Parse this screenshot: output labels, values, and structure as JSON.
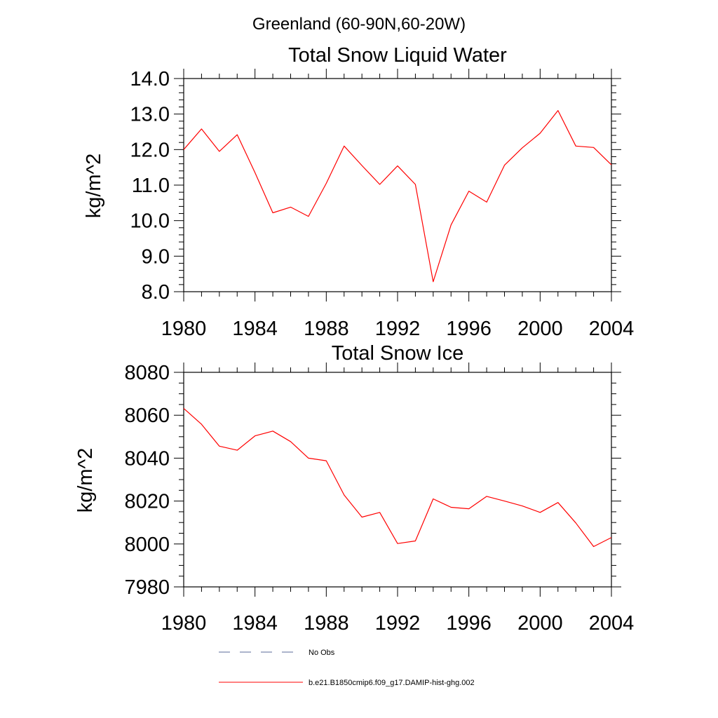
{
  "figure": {
    "suptitle": "Greenland (60-90N,60-20W)"
  },
  "chart_data": [
    {
      "type": "line",
      "title": "Total Snow Liquid Water",
      "xlabel": "",
      "ylabel": "kg/m^2",
      "xlim": [
        1980,
        2004
      ],
      "ylim": [
        8.0,
        14.0
      ],
      "x_ticks": [
        "1980",
        "1984",
        "1988",
        "1992",
        "1996",
        "2000",
        "2004"
      ],
      "y_ticks": [
        "8.0",
        "9.0",
        "10.0",
        "11.0",
        "12.0",
        "13.0",
        "14.0"
      ],
      "grid": false,
      "series": [
        {
          "name": "b.e21.B1850cmip6.f09_g17.DAMIP-hist-ghg.002",
          "color": "#ff0000",
          "x": [
            1980,
            1981,
            1982,
            1983,
            1984,
            1985,
            1986,
            1987,
            1988,
            1989,
            1990,
            1991,
            1992,
            1993,
            1994,
            1995,
            1996,
            1997,
            1998,
            1999,
            2000,
            2001,
            2002,
            2003,
            2004
          ],
          "y": [
            12.0,
            12.58,
            11.95,
            12.42,
            11.35,
            10.22,
            10.38,
            10.12,
            11.05,
            12.1,
            11.55,
            11.02,
            11.54,
            11.02,
            8.28,
            9.88,
            10.83,
            10.52,
            11.56,
            12.05,
            12.46,
            13.1,
            12.1,
            12.06,
            11.57
          ]
        }
      ]
    },
    {
      "type": "line",
      "title": "Total Snow Ice",
      "xlabel": "",
      "ylabel": "kg/m^2",
      "xlim": [
        1980,
        2004
      ],
      "ylim": [
        7980,
        8080
      ],
      "x_ticks": [
        "1980",
        "1984",
        "1988",
        "1992",
        "1996",
        "2000",
        "2004"
      ],
      "y_ticks": [
        "7980",
        "8000",
        "8020",
        "8040",
        "8060",
        "8080"
      ],
      "grid": false,
      "series": [
        {
          "name": "b.e21.B1850cmip6.f09_g17.DAMIP-hist-ghg.002",
          "color": "#ff0000",
          "x": [
            1980,
            1981,
            1982,
            1983,
            1984,
            1985,
            1986,
            1987,
            1988,
            1989,
            1990,
            1991,
            1992,
            1993,
            1994,
            1995,
            1996,
            1997,
            1998,
            1999,
            2000,
            2001,
            2002,
            2003,
            2004
          ],
          "y": [
            8063.2,
            8055.8,
            8045.6,
            8043.7,
            8050.4,
            8052.6,
            8047.7,
            8040.0,
            8038.8,
            8022.8,
            8012.5,
            8014.7,
            8000.2,
            8001.4,
            8021.0,
            8017.1,
            8016.4,
            8022.2,
            8020.0,
            8017.7,
            8014.7,
            8019.3,
            8009.8,
            7998.8,
            8003.0
          ]
        }
      ]
    }
  ],
  "legend": {
    "placement": "bottom-center",
    "items": [
      {
        "label": "No Obs",
        "color": "#5a6a9a",
        "style": "dashed"
      },
      {
        "label": "b.e21.B1850cmip6.f09_g17.DAMIP-hist-ghg.002",
        "color": "#ff0000",
        "style": "solid"
      }
    ]
  }
}
